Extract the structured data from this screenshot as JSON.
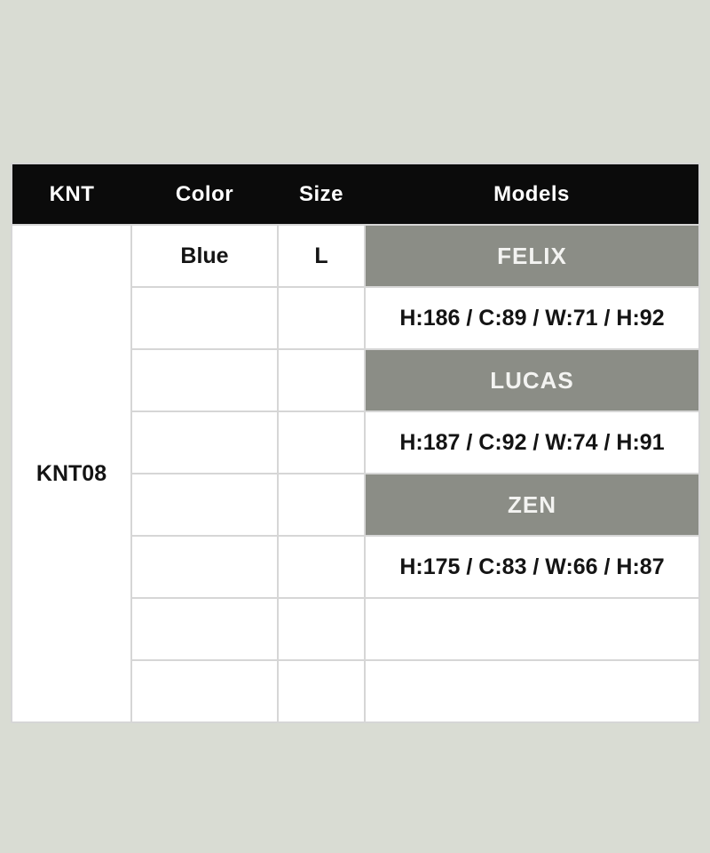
{
  "colors": {
    "page-bg": "#d9dcd3",
    "header-bg": "#0b0b0b",
    "header-fg": "#ffffff",
    "band-bg": "#8b8d86",
    "band-fg": "#f3f3f1",
    "border-col": "#d6d6d6"
  },
  "table": {
    "header": {
      "columns": [
        "KNT",
        "Color",
        "Size",
        "Models"
      ]
    },
    "product_code": "KNT08",
    "rows": [
      {
        "color": "Blue",
        "size": "L",
        "model": "FELIX"
      },
      {
        "color": "",
        "size": "",
        "model": "H:186 / C:89 / W:71 / H:92"
      },
      {
        "color": "",
        "size": "",
        "model": "LUCAS"
      },
      {
        "color": "",
        "size": "",
        "model": "H:187 / C:92 / W:74 / H:91"
      },
      {
        "color": "",
        "size": "",
        "model": "ZEN"
      },
      {
        "color": "",
        "size": "",
        "model": "H:175 / C:83 / W:66 / H:87"
      },
      {
        "color": "",
        "size": "",
        "model": ""
      },
      {
        "color": "",
        "size": "",
        "model": ""
      }
    ]
  },
  "chart_data": {
    "type": "table",
    "title": "",
    "columns": [
      "KNT",
      "Color",
      "Size",
      "Models"
    ],
    "rows": [
      [
        "KNT08",
        "Blue",
        "L",
        "FELIX"
      ],
      [
        "",
        "",
        "",
        "H:186 / C:89 / W:71 / H:92"
      ],
      [
        "",
        "",
        "",
        "LUCAS"
      ],
      [
        "",
        "",
        "",
        "H:187 / C:92 / W:74 / H:91"
      ],
      [
        "",
        "",
        "",
        "ZEN"
      ],
      [
        "",
        "",
        "",
        "H:175 / C:83 / W:66 / H:87"
      ],
      [
        "",
        "",
        "",
        ""
      ],
      [
        "",
        "",
        "",
        ""
      ]
    ],
    "notes": {
      "product_code": "KNT08",
      "color": "Blue",
      "size": "L",
      "models": [
        {
          "name": "FELIX",
          "measurements": "H:186 / C:89 / W:71 / H:92"
        },
        {
          "name": "LUCAS",
          "measurements": "H:187 / C:92 / W:74 / H:91"
        },
        {
          "name": "ZEN",
          "measurements": "H:175 / C:83 / W:66 / H:87"
        }
      ]
    }
  }
}
